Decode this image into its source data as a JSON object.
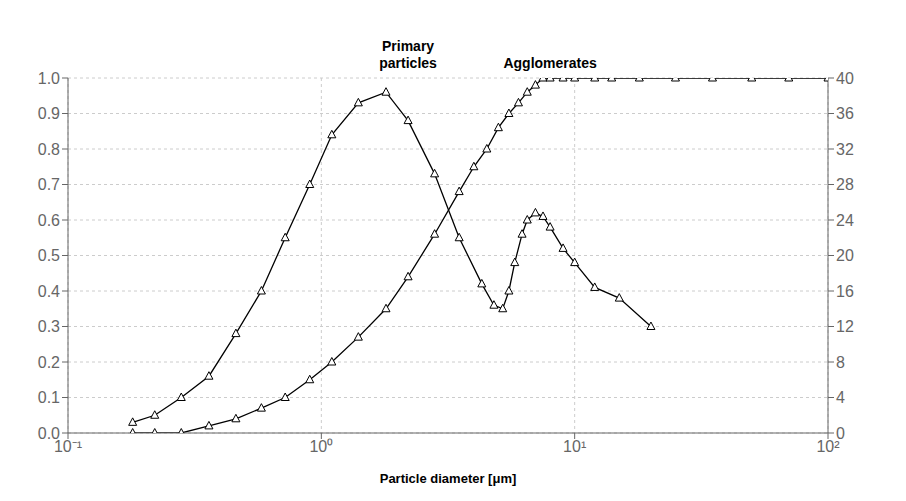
{
  "chart_data": {
    "type": "line",
    "xlabel": "Particle diameter [μm]",
    "log": "x",
    "grid": true,
    "xlim": [
      0.1,
      100
    ],
    "xticks": [
      {
        "value": 0.1,
        "label": "10⁻¹"
      },
      {
        "value": 1,
        "label": "10⁰"
      },
      {
        "value": 10,
        "label": "10¹"
      },
      {
        "value": 100,
        "label": "10²"
      }
    ],
    "ylim": [
      0,
      1
    ],
    "yticks": [
      {
        "value": 0,
        "label": "0.0"
      },
      0.1,
      0.2,
      0.3,
      0.4,
      0.5,
      0.6,
      0.7,
      0.8,
      0.9,
      {
        "value": 1.0,
        "label": "1.0"
      }
    ],
    "y2lim": [
      0,
      40
    ],
    "y2ticks": [
      0,
      4,
      8,
      12,
      16,
      20,
      24,
      28,
      32,
      36,
      40
    ],
    "series": [
      {
        "color": "#000000",
        "marker": "triangle",
        "x": [
          0.18,
          0.22,
          0.28,
          0.36,
          0.46,
          0.58,
          0.72,
          0.9,
          1.1,
          1.4,
          1.8,
          2.2,
          2.8,
          3.5,
          4.3,
          4.8,
          5.2,
          5.5,
          5.8,
          6.2,
          6.5,
          7.0,
          7.5,
          8.0,
          9.0,
          10.0,
          12.0,
          15.0,
          20.0
        ],
        "values": [
          0.03,
          0.05,
          0.1,
          0.16,
          0.28,
          0.4,
          0.55,
          0.7,
          0.84,
          0.93,
          0.96,
          0.88,
          0.73,
          0.55,
          0.42,
          0.36,
          0.35,
          0.4,
          0.48,
          0.56,
          0.6,
          0.62,
          0.61,
          0.58,
          0.52,
          0.48,
          0.41,
          0.38,
          0.3
        ]
      },
      {
        "color": "#000000",
        "marker": "triangle",
        "x": [
          0.18,
          0.22,
          0.28,
          0.36,
          0.46,
          0.58,
          0.72,
          0.9,
          1.1,
          1.4,
          1.8,
          2.2,
          2.8,
          3.5,
          4.0,
          4.5,
          5.0,
          5.5,
          6.0,
          6.5,
          7.0,
          7.5,
          8.0,
          9.0,
          10.0,
          12.0,
          14.0,
          18.0,
          25.0,
          35.0,
          50.0,
          70.0,
          100.0
        ],
        "values": [
          0.0,
          0.0,
          0.0,
          0.02,
          0.04,
          0.07,
          0.1,
          0.15,
          0.2,
          0.27,
          0.35,
          0.44,
          0.56,
          0.68,
          0.75,
          0.8,
          0.86,
          0.9,
          0.93,
          0.96,
          0.98,
          1.0,
          1.0,
          1.0,
          1.0,
          1.0,
          1.0,
          1.0,
          1.0,
          1.0,
          1.0,
          1.0,
          1.0
        ]
      }
    ],
    "annotations": [
      {
        "text": "Primary\nparticles",
        "x": 2.2
      },
      {
        "text": "Agglomerates",
        "x": 8.0
      }
    ]
  }
}
